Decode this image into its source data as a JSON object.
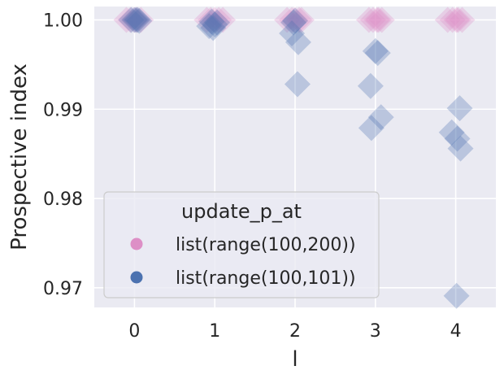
{
  "chart_data": {
    "type": "scatter",
    "xlabel": "l",
    "ylabel": "Prospective index",
    "xlim": [
      -0.5,
      4.5
    ],
    "ylim": [
      0.9678,
      1.0015
    ],
    "x_ticks": [
      0,
      1,
      2,
      3,
      4
    ],
    "x_tick_labels": [
      "0",
      "1",
      "2",
      "3",
      "4"
    ],
    "y_ticks": [
      0.97,
      0.98,
      0.99,
      1.0
    ],
    "y_tick_labels": [
      "0.97",
      "0.98",
      "0.99",
      "1.00"
    ],
    "grid": true,
    "background": "#eaeaf2",
    "marker": "diamond",
    "legend": {
      "title": "update_p_at",
      "placement": "lower-left"
    },
    "series": [
      {
        "name": "list(range(100,200))",
        "color": "#dd8fc6",
        "points": [
          {
            "x": -0.05,
            "y": 1.0
          },
          {
            "x": 0.03,
            "y": 1.0
          },
          {
            "x": 0.08,
            "y": 1.0
          },
          {
            "x": -0.1,
            "y": 1.0
          },
          {
            "x": 0.0,
            "y": 1.0
          },
          {
            "x": 0.9,
            "y": 1.0
          },
          {
            "x": 1.05,
            "y": 1.0
          },
          {
            "x": 1.1,
            "y": 1.0
          },
          {
            "x": 0.95,
            "y": 1.0
          },
          {
            "x": 1.0,
            "y": 1.0
          },
          {
            "x": 1.9,
            "y": 1.0
          },
          {
            "x": 2.05,
            "y": 1.0
          },
          {
            "x": 2.08,
            "y": 1.0
          },
          {
            "x": 1.96,
            "y": 1.0
          },
          {
            "x": 2.0,
            "y": 1.0
          },
          {
            "x": 2.92,
            "y": 1.0
          },
          {
            "x": 3.02,
            "y": 1.0
          },
          {
            "x": 3.08,
            "y": 1.0
          },
          {
            "x": 2.97,
            "y": 1.0
          },
          {
            "x": 3.04,
            "y": 1.0
          },
          {
            "x": 3.9,
            "y": 1.0
          },
          {
            "x": 4.03,
            "y": 1.0
          },
          {
            "x": 4.08,
            "y": 1.0
          },
          {
            "x": 3.96,
            "y": 1.0
          },
          {
            "x": 4.01,
            "y": 1.0
          }
        ]
      },
      {
        "name": "list(range(100,101))",
        "color": "#4c72b0",
        "points": [
          {
            "x": -0.04,
            "y": 1.0
          },
          {
            "x": 0.02,
            "y": 1.0
          },
          {
            "x": 0.06,
            "y": 0.9999
          },
          {
            "x": 0.0,
            "y": 1.0
          },
          {
            "x": 0.04,
            "y": 1.0
          },
          {
            "x": 0.93,
            "y": 0.9993
          },
          {
            "x": 0.98,
            "y": 0.9991
          },
          {
            "x": 1.0,
            "y": 0.9995
          },
          {
            "x": 1.03,
            "y": 0.9997
          },
          {
            "x": 0.96,
            "y": 0.9998
          },
          {
            "x": 1.96,
            "y": 0.9985
          },
          {
            "x": 2.04,
            "y": 0.9975
          },
          {
            "x": 2.03,
            "y": 0.9928
          },
          {
            "x": 1.98,
            "y": 0.9997
          },
          {
            "x": 2.0,
            "y": 0.9999
          },
          {
            "x": 2.94,
            "y": 0.9926
          },
          {
            "x": 2.95,
            "y": 0.9879
          },
          {
            "x": 3.07,
            "y": 0.9891
          },
          {
            "x": 3.0,
            "y": 0.9965
          },
          {
            "x": 3.03,
            "y": 0.9963
          },
          {
            "x": 3.95,
            "y": 0.9874
          },
          {
            "x": 4.02,
            "y": 0.9867
          },
          {
            "x": 4.06,
            "y": 0.9856
          },
          {
            "x": 4.05,
            "y": 0.9901
          },
          {
            "x": 4.01,
            "y": 0.9691
          }
        ]
      }
    ]
  }
}
